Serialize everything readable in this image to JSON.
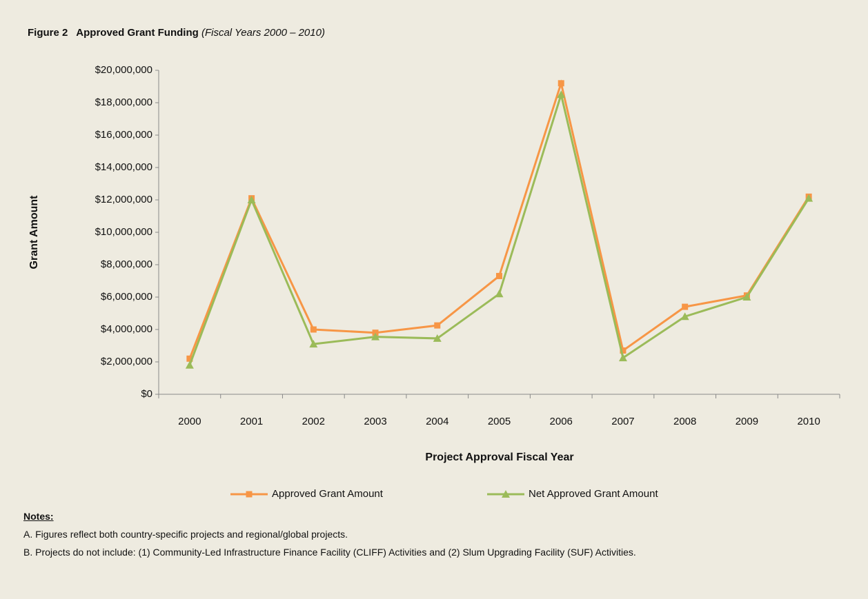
{
  "chart_data": {
    "type": "line",
    "title": "Figure 2   Approved Grant Funding",
    "subtitle": "(Fiscal Years 2000 – 2010)",
    "x_label": "Project Approval Fiscal Year",
    "y_label": "Grant Amount",
    "categories": [
      "2000",
      "2001",
      "2002",
      "2003",
      "2004",
      "2005",
      "2006",
      "2007",
      "2008",
      "2009",
      "2010"
    ],
    "series": [
      {
        "name": "Approved Grant Amount",
        "color": "#f79646",
        "marker": "square",
        "values": [
          2200000,
          12100000,
          4000000,
          3800000,
          4250000,
          7300000,
          19200000,
          2700000,
          5400000,
          6100000,
          12200000
        ]
      },
      {
        "name": "Net Approved Grant Amount",
        "color": "#9bbb59",
        "marker": "triangle",
        "values": [
          1800000,
          12000000,
          3100000,
          3550000,
          3450000,
          6200000,
          18500000,
          2250000,
          4800000,
          6000000,
          12100000
        ]
      }
    ],
    "ylim": [
      0,
      20000000
    ],
    "yticks": [
      {
        "value": 0,
        "label": "$0"
      },
      {
        "value": 2000000,
        "label": "$2,000,000"
      },
      {
        "value": 4000000,
        "label": "$4,000,000"
      },
      {
        "value": 6000000,
        "label": "$6,000,000"
      },
      {
        "value": 8000000,
        "label": "$8,000,000"
      },
      {
        "value": 10000000,
        "label": "$10,000,000"
      },
      {
        "value": 12000000,
        "label": "$12,000,000"
      },
      {
        "value": 14000000,
        "label": "$14,000,000"
      },
      {
        "value": 16000000,
        "label": "$16,000,000"
      },
      {
        "value": 18000000,
        "label": "$18,000,000"
      },
      {
        "value": 20000000,
        "label": "$20,000,000"
      }
    ],
    "grid": false,
    "legend": "bottom"
  },
  "notes": {
    "heading": "Notes:",
    "items": [
      "A. Figures reflect both country-specific projects and regional/global projects.",
      "B. Projects do not include: (1) Community-Led Infrastructure Finance Facility (CLIFF) Activities and (2) Slum Upgrading Facility (SUF) Activities."
    ]
  }
}
